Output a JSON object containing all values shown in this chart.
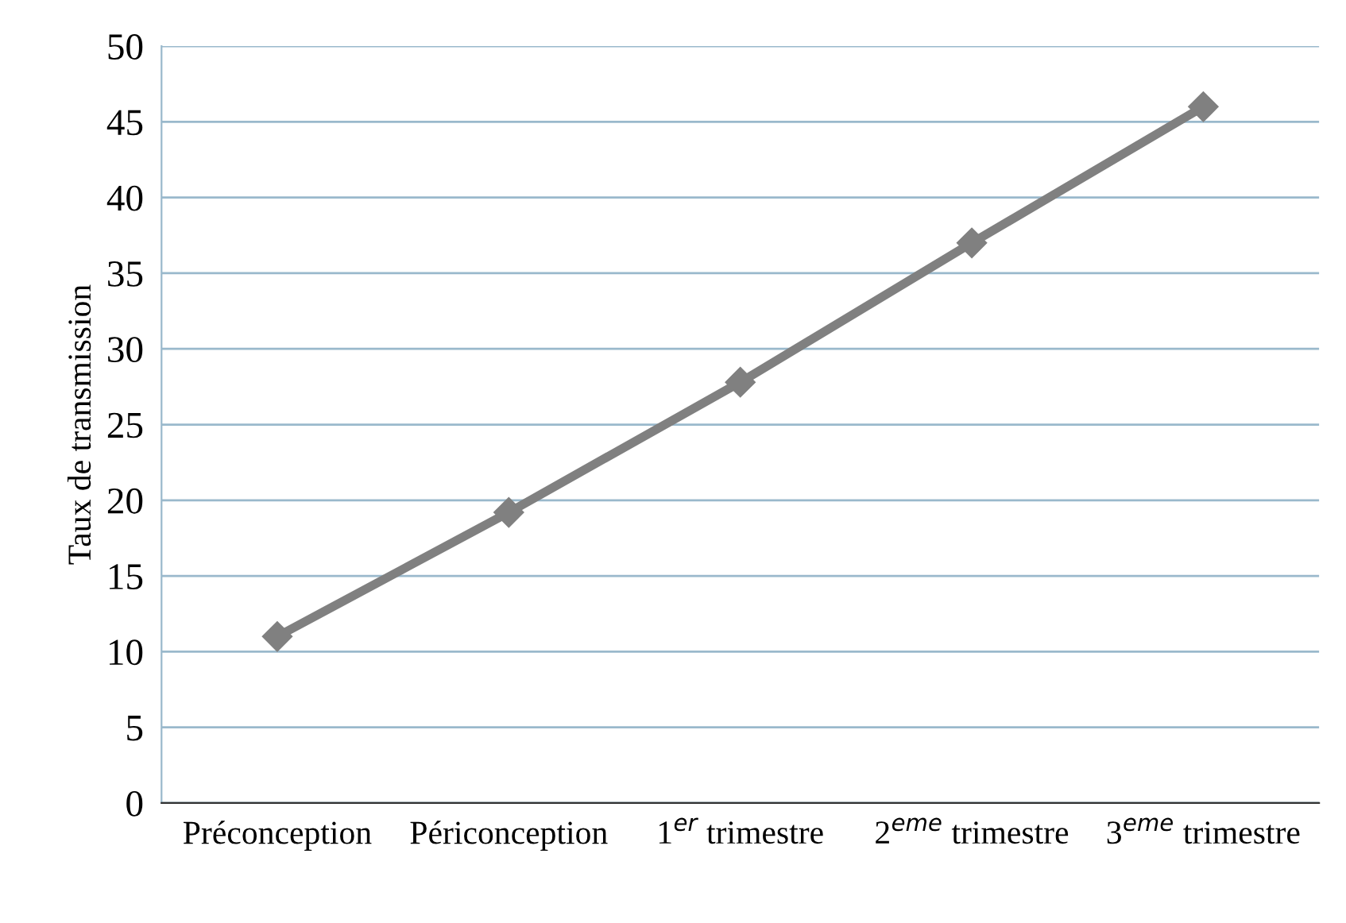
{
  "chart_data": {
    "type": "line",
    "ylabel": "Taux de transmission",
    "categories": [
      "Préconception",
      "Périconception",
      "1$^{er}$ trimestre",
      "2$^{eme}$ trimestre",
      "3$^{eme}$ trimestre"
    ],
    "series": [
      {
        "color": "#808080",
        "values": [
          11,
          19.2,
          27.8,
          37,
          46
        ]
      }
    ],
    "ylim": [
      0,
      50
    ],
    "yticks": [
      0,
      5,
      10,
      15,
      20,
      25,
      30,
      35,
      40,
      45,
      50
    ],
    "grid": "y",
    "marker": "diamond",
    "line_style": "solid"
  }
}
